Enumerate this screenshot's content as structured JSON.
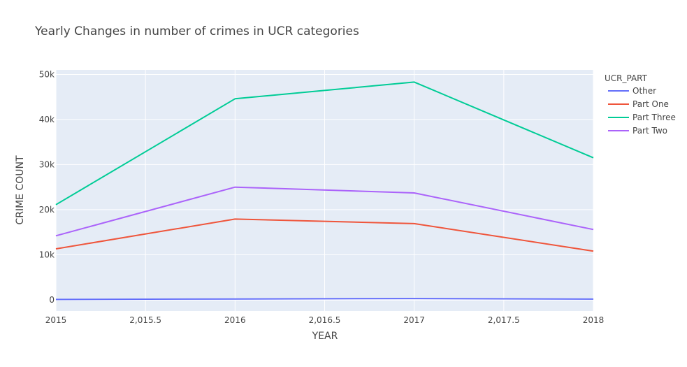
{
  "chart_data": {
    "type": "line",
    "title": "Yearly Changes in number of crimes in UCR categories",
    "xlabel": "YEAR",
    "ylabel": "CRIME COUNT",
    "x": [
      2015,
      2016,
      2017,
      2018
    ],
    "xlim": [
      2015,
      2018
    ],
    "ylim": [
      -2500,
      51000
    ],
    "x_ticks": [
      2015,
      2015.5,
      2016,
      2016.5,
      2017,
      2017.5,
      2018
    ],
    "x_tick_labels": [
      "2015",
      "2,015.5",
      "2016",
      "2,016.5",
      "2017",
      "2,017.5",
      "2018"
    ],
    "y_ticks": [
      0,
      10000,
      20000,
      30000,
      40000,
      50000
    ],
    "y_tick_labels": [
      "0",
      "10k",
      "20k",
      "30k",
      "40k",
      "50k"
    ],
    "grid": true,
    "background": "#e5ecf6",
    "legend": {
      "title": "UCR_PART",
      "position": "right"
    },
    "series": [
      {
        "name": "Other",
        "color": "#636efa",
        "values": [
          80,
          180,
          280,
          150
        ]
      },
      {
        "name": "Part One",
        "color": "#ef553b",
        "values": [
          11300,
          17900,
          16900,
          10800
        ]
      },
      {
        "name": "Part Three",
        "color": "#00cc96",
        "values": [
          21100,
          44600,
          48300,
          31500
        ]
      },
      {
        "name": "Part Two",
        "color": "#ab63fa",
        "values": [
          14200,
          25000,
          23700,
          15600
        ]
      }
    ]
  }
}
